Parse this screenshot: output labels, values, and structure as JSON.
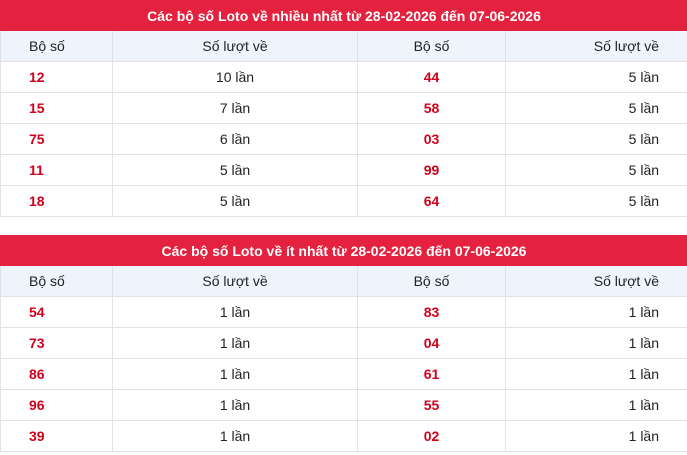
{
  "tables": [
    {
      "title": "Các bộ số Loto về nhiều nhất từ 28-02-2026 đến 07-06-2026",
      "headers": [
        "Bộ số",
        "Số lượt về",
        "Bộ số",
        "Số lượt về"
      ],
      "rows": [
        [
          "12",
          "10 lần",
          "44",
          "5 lần"
        ],
        [
          "15",
          "7 lần",
          "58",
          "5 lần"
        ],
        [
          "75",
          "6 lần",
          "03",
          "5 lần"
        ],
        [
          "11",
          "5 lần",
          "99",
          "5 lần"
        ],
        [
          "18",
          "5 lần",
          "64",
          "5 lần"
        ]
      ]
    },
    {
      "title": "Các bộ số Loto về ít nhất từ 28-02-2026 đến 07-06-2026",
      "headers": [
        "Bộ số",
        "Số lượt về",
        "Bộ số",
        "Số lượt về"
      ],
      "rows": [
        [
          "54",
          "1 lần",
          "83",
          "1 lần"
        ],
        [
          "73",
          "1 lần",
          "04",
          "1 lần"
        ],
        [
          "86",
          "1 lần",
          "61",
          "1 lần"
        ],
        [
          "96",
          "1 lần",
          "55",
          "1 lần"
        ],
        [
          "39",
          "1 lần",
          "02",
          "1 lần"
        ]
      ]
    }
  ]
}
